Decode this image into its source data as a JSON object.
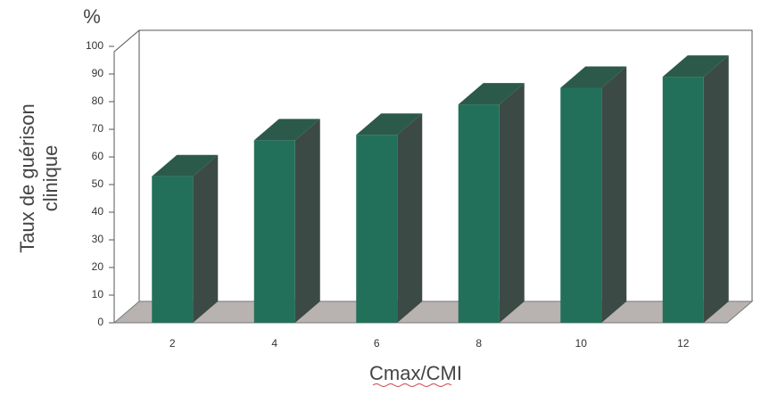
{
  "chart_data": {
    "type": "bar3d",
    "y_unit": "%",
    "y_label": [
      "Taux de guérison",
      "clinique"
    ],
    "x_label": "Cmax/CMI",
    "categories": [
      "2",
      "4",
      "6",
      "8",
      "10",
      "12"
    ],
    "values": [
      53,
      66,
      68,
      79,
      85,
      89
    ],
    "color": "#22705a",
    "ylim": [
      0,
      100
    ],
    "yticks": [
      0,
      10,
      20,
      30,
      40,
      50,
      60,
      70,
      80,
      90,
      100
    ],
    "grid": false
  }
}
